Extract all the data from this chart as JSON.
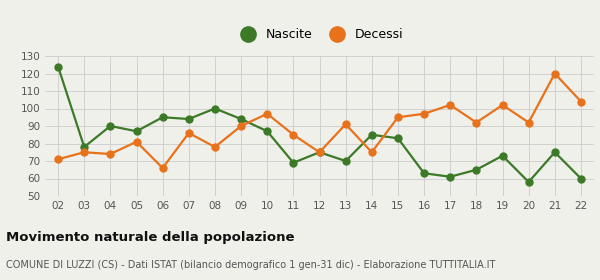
{
  "years": [
    "02",
    "03",
    "04",
    "05",
    "06",
    "07",
    "08",
    "09",
    "10",
    "11",
    "12",
    "13",
    "14",
    "15",
    "16",
    "17",
    "18",
    "19",
    "20",
    "21",
    "22"
  ],
  "nascite": [
    124,
    78,
    90,
    87,
    95,
    94,
    100,
    94,
    87,
    69,
    75,
    70,
    85,
    83,
    63,
    61,
    65,
    73,
    58,
    75,
    60
  ],
  "decessi": [
    71,
    75,
    74,
    81,
    66,
    86,
    78,
    90,
    97,
    85,
    75,
    91,
    75,
    95,
    97,
    102,
    92,
    102,
    92,
    120,
    104
  ],
  "nascite_color": "#3d7a28",
  "decessi_color": "#e8721c",
  "nascite_label": "Nascite",
  "decessi_label": "Decessi",
  "ylim": [
    50,
    130
  ],
  "yticks": [
    50,
    60,
    70,
    80,
    90,
    100,
    110,
    120,
    130
  ],
  "title": "Movimento naturale della popolazione",
  "subtitle": "COMUNE DI LUZZI (CS) - Dati ISTAT (bilancio demografico 1 gen-31 dic) - Elaborazione TUTTITALIA.IT",
  "bg_color": "#f0f0eb",
  "grid_color": "#cccccc",
  "marker_size": 5,
  "linewidth": 1.6
}
